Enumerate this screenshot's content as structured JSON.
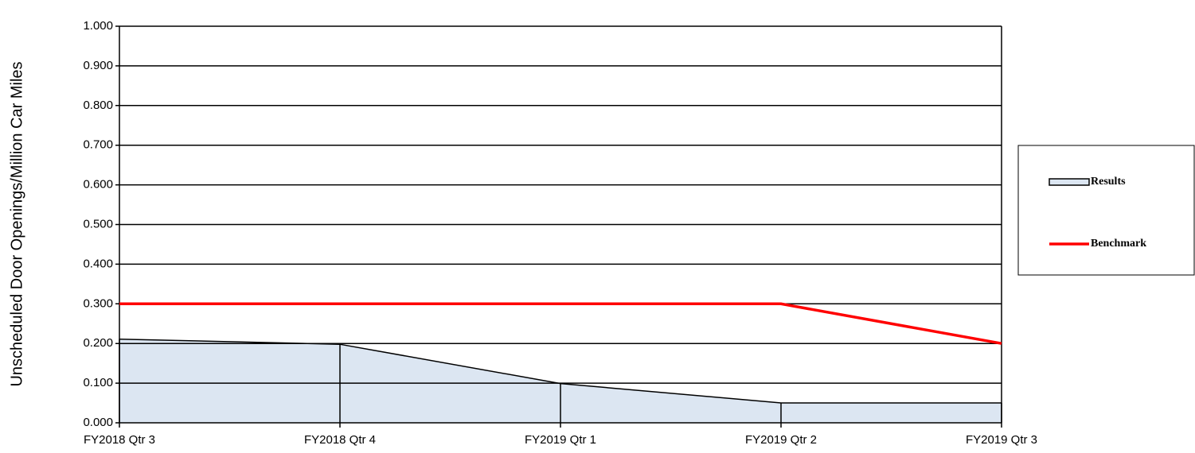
{
  "chart_data": {
    "type": "area",
    "y_label": "Unscheduled Door Openings/Million Car Miles",
    "categories": [
      "FY2018 Qtr 3",
      "FY2018 Qtr 4",
      "FY2019 Qtr 1",
      "FY2019 Qtr 2",
      "FY2019 Qtr 3"
    ],
    "series": [
      {
        "name": "Results",
        "type": "area",
        "color": "#dce6f2",
        "values": [
          0.211,
          0.198,
          0.099,
          0.05,
          0.05
        ]
      },
      {
        "name": "Benchmark",
        "type": "line",
        "color": "#ff0000",
        "values": [
          0.3,
          0.3,
          0.3,
          0.3,
          0.2
        ]
      }
    ],
    "ylim": [
      0,
      1
    ],
    "yticks": [
      {
        "value": 0,
        "label": "0.000"
      },
      {
        "value": 0.1,
        "label": "0.100"
      },
      {
        "value": 0.2,
        "label": "0.200"
      },
      {
        "value": 0.3,
        "label": "0.300"
      },
      {
        "value": 0.4,
        "label": "0.400"
      },
      {
        "value": 0.5,
        "label": "0.500"
      },
      {
        "value": 0.6,
        "label": "0.600"
      },
      {
        "value": 0.7,
        "label": "0.700"
      },
      {
        "value": 0.8,
        "label": "0.800"
      },
      {
        "value": 0.9,
        "label": "0.900"
      },
      {
        "value": 1,
        "label": "1.000"
      }
    ],
    "grid": true
  }
}
